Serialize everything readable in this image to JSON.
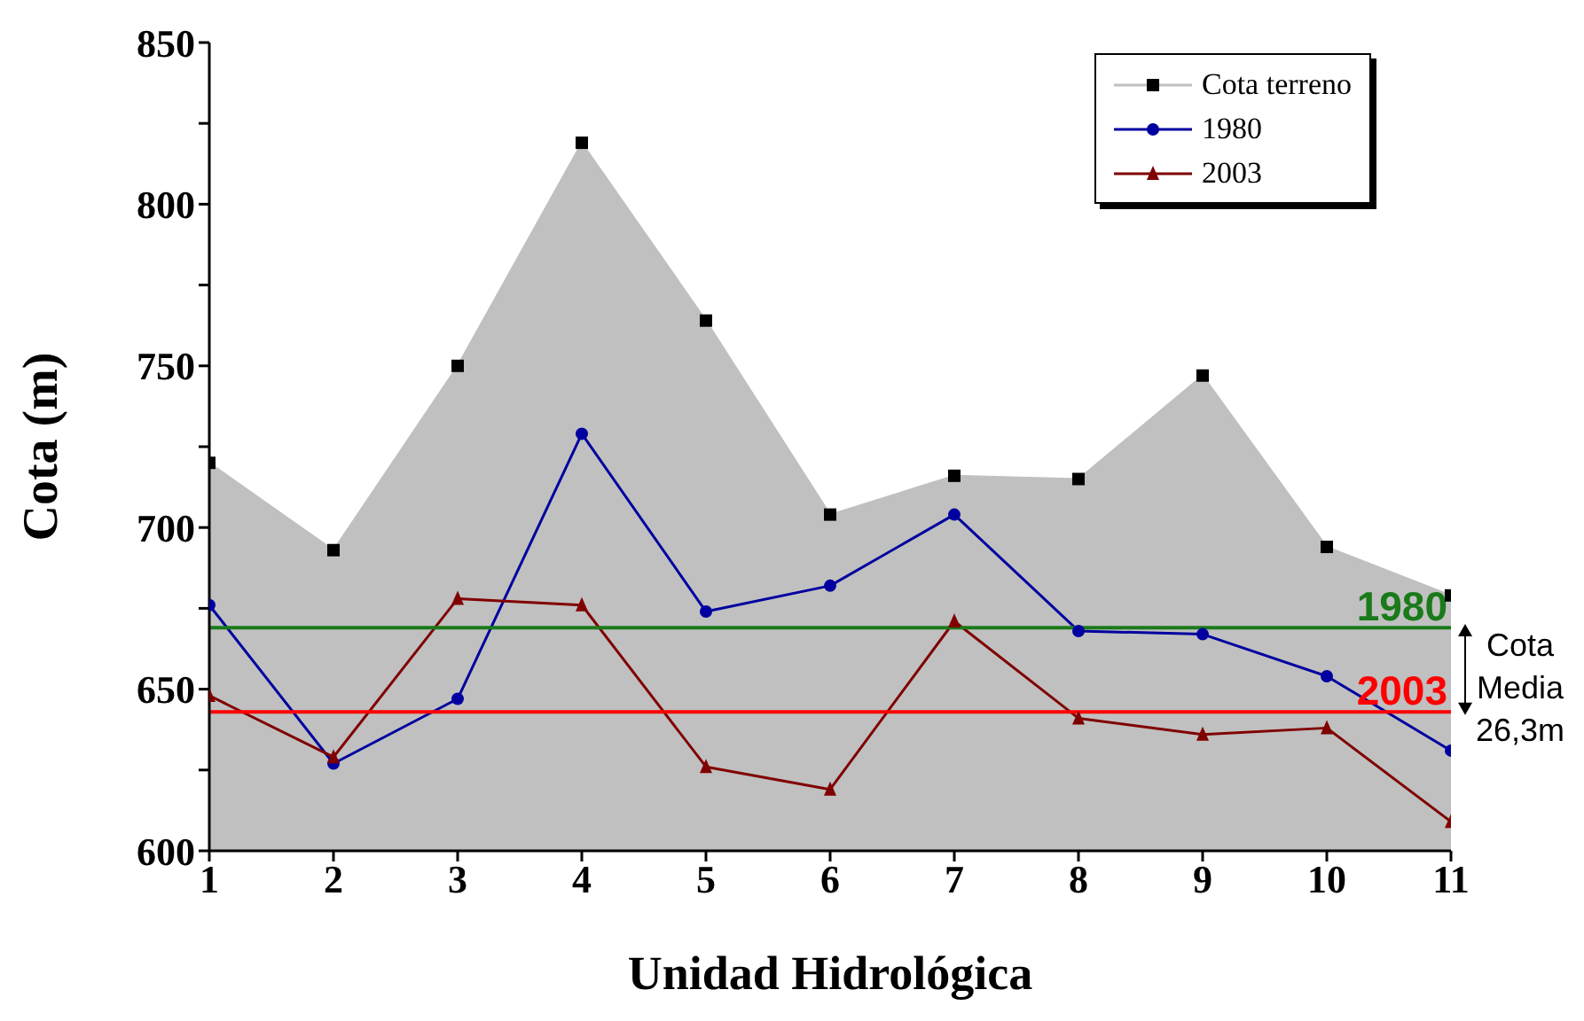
{
  "chart_data": {
    "type": "area",
    "xlabel": "Unidad Hidrológica",
    "ylabel": "Cota (m)",
    "x": [
      1,
      2,
      3,
      4,
      5,
      6,
      7,
      8,
      9,
      10,
      11
    ],
    "xlim": [
      1,
      11
    ],
    "xticks": [
      1,
      2,
      3,
      4,
      5,
      6,
      7,
      8,
      9,
      10,
      11
    ],
    "ylim": [
      600,
      850
    ],
    "yticks": [
      600,
      {
        "value": 625,
        "label": null
      },
      650,
      {
        "value": 675,
        "label": null
      },
      700,
      {
        "value": 725,
        "label": null
      },
      750,
      {
        "value": 775,
        "label": null
      },
      800,
      {
        "value": 825,
        "label": null
      },
      850
    ],
    "grid": false,
    "legend": "top right",
    "series": [
      {
        "name": "Cota terreno",
        "type": "area",
        "color": "#c0c0c0",
        "marker": "square",
        "values": [
          720,
          693,
          750,
          819,
          764,
          704,
          716,
          715,
          747,
          694,
          679
        ]
      },
      {
        "name": "1980",
        "type": "line",
        "color": "#0000a0",
        "marker": "circle",
        "values": [
          676,
          627,
          647,
          729,
          674,
          682,
          704,
          668,
          667,
          654,
          631
        ]
      },
      {
        "name": "2003",
        "type": "line",
        "color": "#800000",
        "marker": "triangle",
        "values": [
          648,
          629,
          678,
          676,
          626,
          619,
          671,
          641,
          636,
          638,
          609
        ]
      }
    ],
    "ref_lines": [
      {
        "axis": "y",
        "value": 669,
        "color": "#1a7a1a"
      },
      {
        "axis": "y",
        "value": 643,
        "color": "#ff0000"
      }
    ],
    "annotations": [
      {
        "text": "1980",
        "x": 11,
        "y": 669
      },
      {
        "text": "2003",
        "x": 11,
        "y": 643
      },
      "Cota Media 26,3m"
    ]
  }
}
